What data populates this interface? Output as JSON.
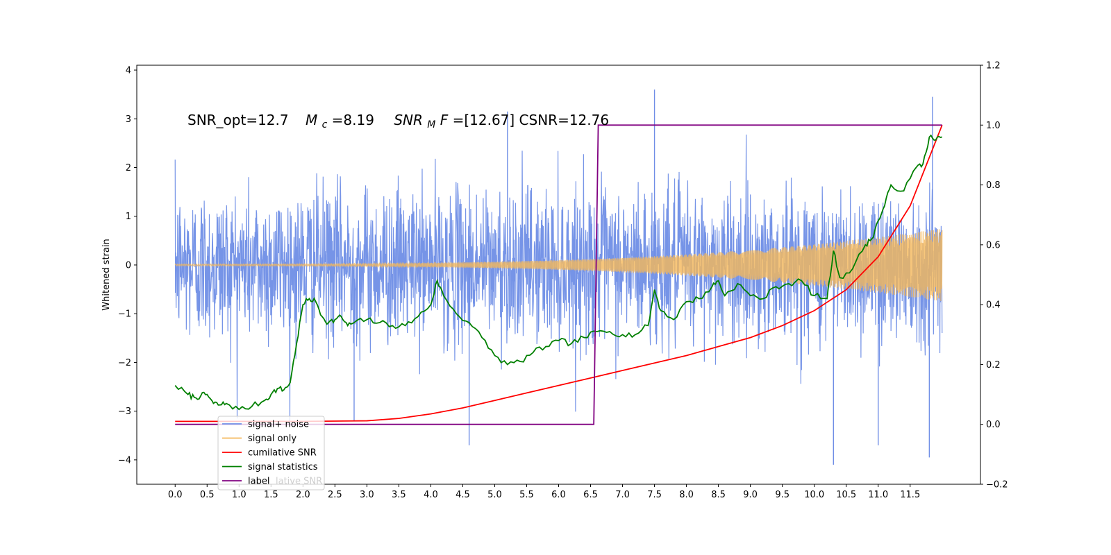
{
  "chart_data": {
    "type": "line",
    "annotation": {
      "snr_opt_label": "SNR_opt=12.7",
      "mc_symbol": "M",
      "mc_sub": "c",
      "mc_value": "=8.19",
      "snrmf_symbol": "SNR",
      "snrmf_sub": "M",
      "snrmf_f": "F",
      "snrmf_value": "=[12.67] CSNR=12.76"
    },
    "y_left": {
      "label": "Whitened strain",
      "lim": [
        -4.5,
        4.1
      ],
      "ticks": [
        -4,
        -3,
        -2,
        -1,
        0,
        1,
        2,
        3,
        4
      ],
      "tick_labels": [
        "−4",
        "−3",
        "−2",
        "−1",
        "0",
        "1",
        "2",
        "3",
        "4"
      ]
    },
    "y_right": {
      "lim": [
        -0.2,
        1.2
      ],
      "ticks": [
        -0.2,
        0.0,
        0.2,
        0.4,
        0.6,
        0.8,
        1.0,
        1.2
      ],
      "tick_labels": [
        "−0.2",
        "0.0",
        "0.2",
        "0.4",
        "0.6",
        "0.8",
        "1.0",
        "1.2"
      ]
    },
    "x": {
      "lim": [
        -0.6,
        12.6
      ],
      "ticks": [
        0.0,
        0.5,
        1.0,
        1.5,
        2.0,
        2.5,
        3.0,
        3.5,
        4.0,
        4.5,
        5.0,
        5.5,
        6.0,
        6.5,
        7.0,
        7.5,
        8.0,
        8.5,
        9.0,
        9.5,
        10.0,
        10.5,
        11.0,
        11.5
      ],
      "tick_labels": [
        "0.0",
        "0.5",
        "1.0",
        "1.5",
        "2.0",
        "2.5",
        "3.0",
        "3.5",
        "4.0",
        "4.5",
        "5.0",
        "5.5",
        "6.0",
        "6.5",
        "7.0",
        "7.5",
        "8.0",
        "8.5",
        "9.0",
        "9.5",
        "10.0",
        "10.5",
        "11.0",
        "11.5"
      ]
    },
    "series": [
      {
        "name": "signal+ noise",
        "axis": "left",
        "color": "#6f8ee6",
        "kind": "noise",
        "x_range": [
          0.0,
          12.0
        ],
        "noise_band": [
          -2.0,
          2.2
        ],
        "extreme_max": 3.6,
        "extreme_min": -4.1
      },
      {
        "name": "signal only",
        "axis": "left",
        "color": "#f5b85a",
        "kind": "chirp",
        "x_range": [
          0.0,
          12.0
        ],
        "amplitude_start": 0.02,
        "amplitude_end": 0.75
      },
      {
        "name": "cumilative SNR",
        "axis": "right",
        "color": "#ff0000",
        "x": [
          0.0,
          1.0,
          2.0,
          3.0,
          3.5,
          4.0,
          4.5,
          5.0,
          5.5,
          6.0,
          6.5,
          7.0,
          7.5,
          8.0,
          8.5,
          9.0,
          9.5,
          10.0,
          10.5,
          11.0,
          11.5,
          12.0
        ],
        "y": [
          0.01,
          0.01,
          0.01,
          0.012,
          0.02,
          0.035,
          0.055,
          0.08,
          0.105,
          0.13,
          0.155,
          0.18,
          0.205,
          0.23,
          0.26,
          0.29,
          0.33,
          0.38,
          0.45,
          0.56,
          0.73,
          1.0
        ]
      },
      {
        "name": "signal statistics",
        "axis": "right",
        "color": "#008000",
        "x": [
          0.0,
          0.2,
          0.3,
          0.4,
          0.5,
          0.6,
          0.7,
          0.8,
          1.0,
          1.2,
          1.4,
          1.5,
          1.6,
          1.7,
          1.8,
          1.9,
          2.0,
          2.1,
          2.2,
          2.3,
          2.4,
          2.5,
          2.6,
          2.7,
          2.8,
          3.0,
          3.2,
          3.4,
          3.6,
          3.8,
          4.0,
          4.1,
          4.2,
          4.4,
          4.6,
          4.8,
          5.0,
          5.2,
          5.4,
          5.6,
          5.8,
          6.0,
          6.2,
          6.4,
          6.6,
          6.8,
          7.0,
          7.2,
          7.4,
          7.5,
          7.6,
          7.8,
          8.0,
          8.2,
          8.4,
          8.5,
          8.6,
          8.8,
          9.0,
          9.2,
          9.4,
          9.6,
          9.8,
          10.0,
          10.2,
          10.3,
          10.4,
          10.6,
          10.8,
          10.9,
          11.0,
          11.1,
          11.2,
          11.4,
          11.6,
          11.7,
          11.8,
          11.9,
          12.0
        ],
        "y": [
          0.13,
          0.1,
          0.09,
          0.095,
          0.1,
          0.07,
          0.065,
          0.07,
          0.05,
          0.06,
          0.08,
          0.1,
          0.12,
          0.115,
          0.14,
          0.27,
          0.4,
          0.42,
          0.41,
          0.36,
          0.34,
          0.35,
          0.36,
          0.33,
          0.34,
          0.35,
          0.34,
          0.33,
          0.33,
          0.36,
          0.4,
          0.48,
          0.43,
          0.37,
          0.34,
          0.29,
          0.23,
          0.2,
          0.21,
          0.24,
          0.26,
          0.28,
          0.27,
          0.29,
          0.31,
          0.31,
          0.3,
          0.3,
          0.33,
          0.45,
          0.38,
          0.35,
          0.41,
          0.42,
          0.46,
          0.48,
          0.43,
          0.47,
          0.43,
          0.42,
          0.46,
          0.47,
          0.48,
          0.43,
          0.42,
          0.58,
          0.49,
          0.52,
          0.6,
          0.62,
          0.68,
          0.73,
          0.8,
          0.78,
          0.86,
          0.87,
          0.96,
          0.95,
          0.96
        ],
        "noise_seed": 7
      },
      {
        "name": "label",
        "axis": "right",
        "color": "#800080",
        "x": [
          0.0,
          6.55,
          6.62,
          12.0
        ],
        "y": [
          0.0,
          0.0,
          1.0,
          1.0
        ]
      }
    ],
    "legend": {
      "placement": "lower-left",
      "entries": [
        "signal+ noise",
        "signal only",
        "cumilative SNR",
        "signal statistics",
        "label"
      ],
      "ghost_text": "lative SNR"
    }
  }
}
